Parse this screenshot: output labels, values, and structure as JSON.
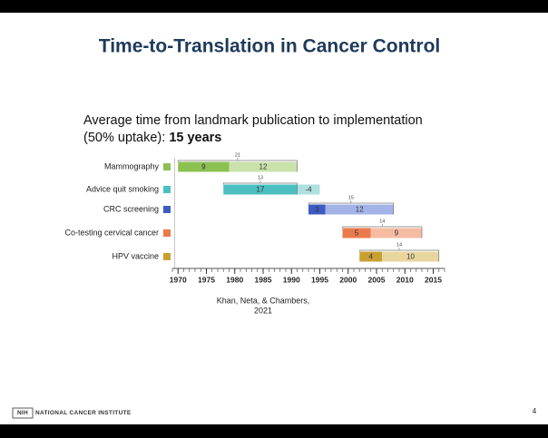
{
  "slide": {
    "title": "Time-to-Translation in Cancer Control",
    "subtitle_line1": "Average time from landmark publication to implementation",
    "subtitle_line2": "(50% uptake): ",
    "subtitle_emphasis": "15 years",
    "citation_line1": "Khan, Neta, & Chambers,",
    "citation_line2": "2021",
    "footer_logo": "NIH",
    "footer_text": "NATIONAL CANCER INSTITUTE",
    "page_number": "4"
  },
  "chart_data": {
    "type": "gantt",
    "xlim": [
      1969,
      2017
    ],
    "xticks": [
      1970,
      1975,
      1980,
      1985,
      1990,
      1995,
      2000,
      2005,
      2010,
      2015
    ],
    "series": [
      {
        "name": "Mammography",
        "color": "#8cc152",
        "light_color": "#c9e2aa",
        "start": 1970,
        "values": [
          9,
          12
        ],
        "total": 21
      },
      {
        "name": "Advice quit smoking",
        "color": "#4cbfc0",
        "light_color": "#aee0e0",
        "start": 1978,
        "values": [
          17,
          -4
        ],
        "total": 13
      },
      {
        "name": "CRC screening",
        "color": "#3d5cc2",
        "light_color": "#a3b3e8",
        "start": 1993,
        "values": [
          3,
          12
        ],
        "total": 15
      },
      {
        "name": "Co-testing cervical cancer",
        "color": "#ea7a4c",
        "light_color": "#f5bca2",
        "start": 1999,
        "values": [
          5,
          9
        ],
        "total": 14
      },
      {
        "name": "HPV vaccine",
        "color": "#c8a032",
        "light_color": "#e9d69e",
        "start": 2002,
        "values": [
          4,
          10
        ],
        "total": 14
      }
    ]
  }
}
